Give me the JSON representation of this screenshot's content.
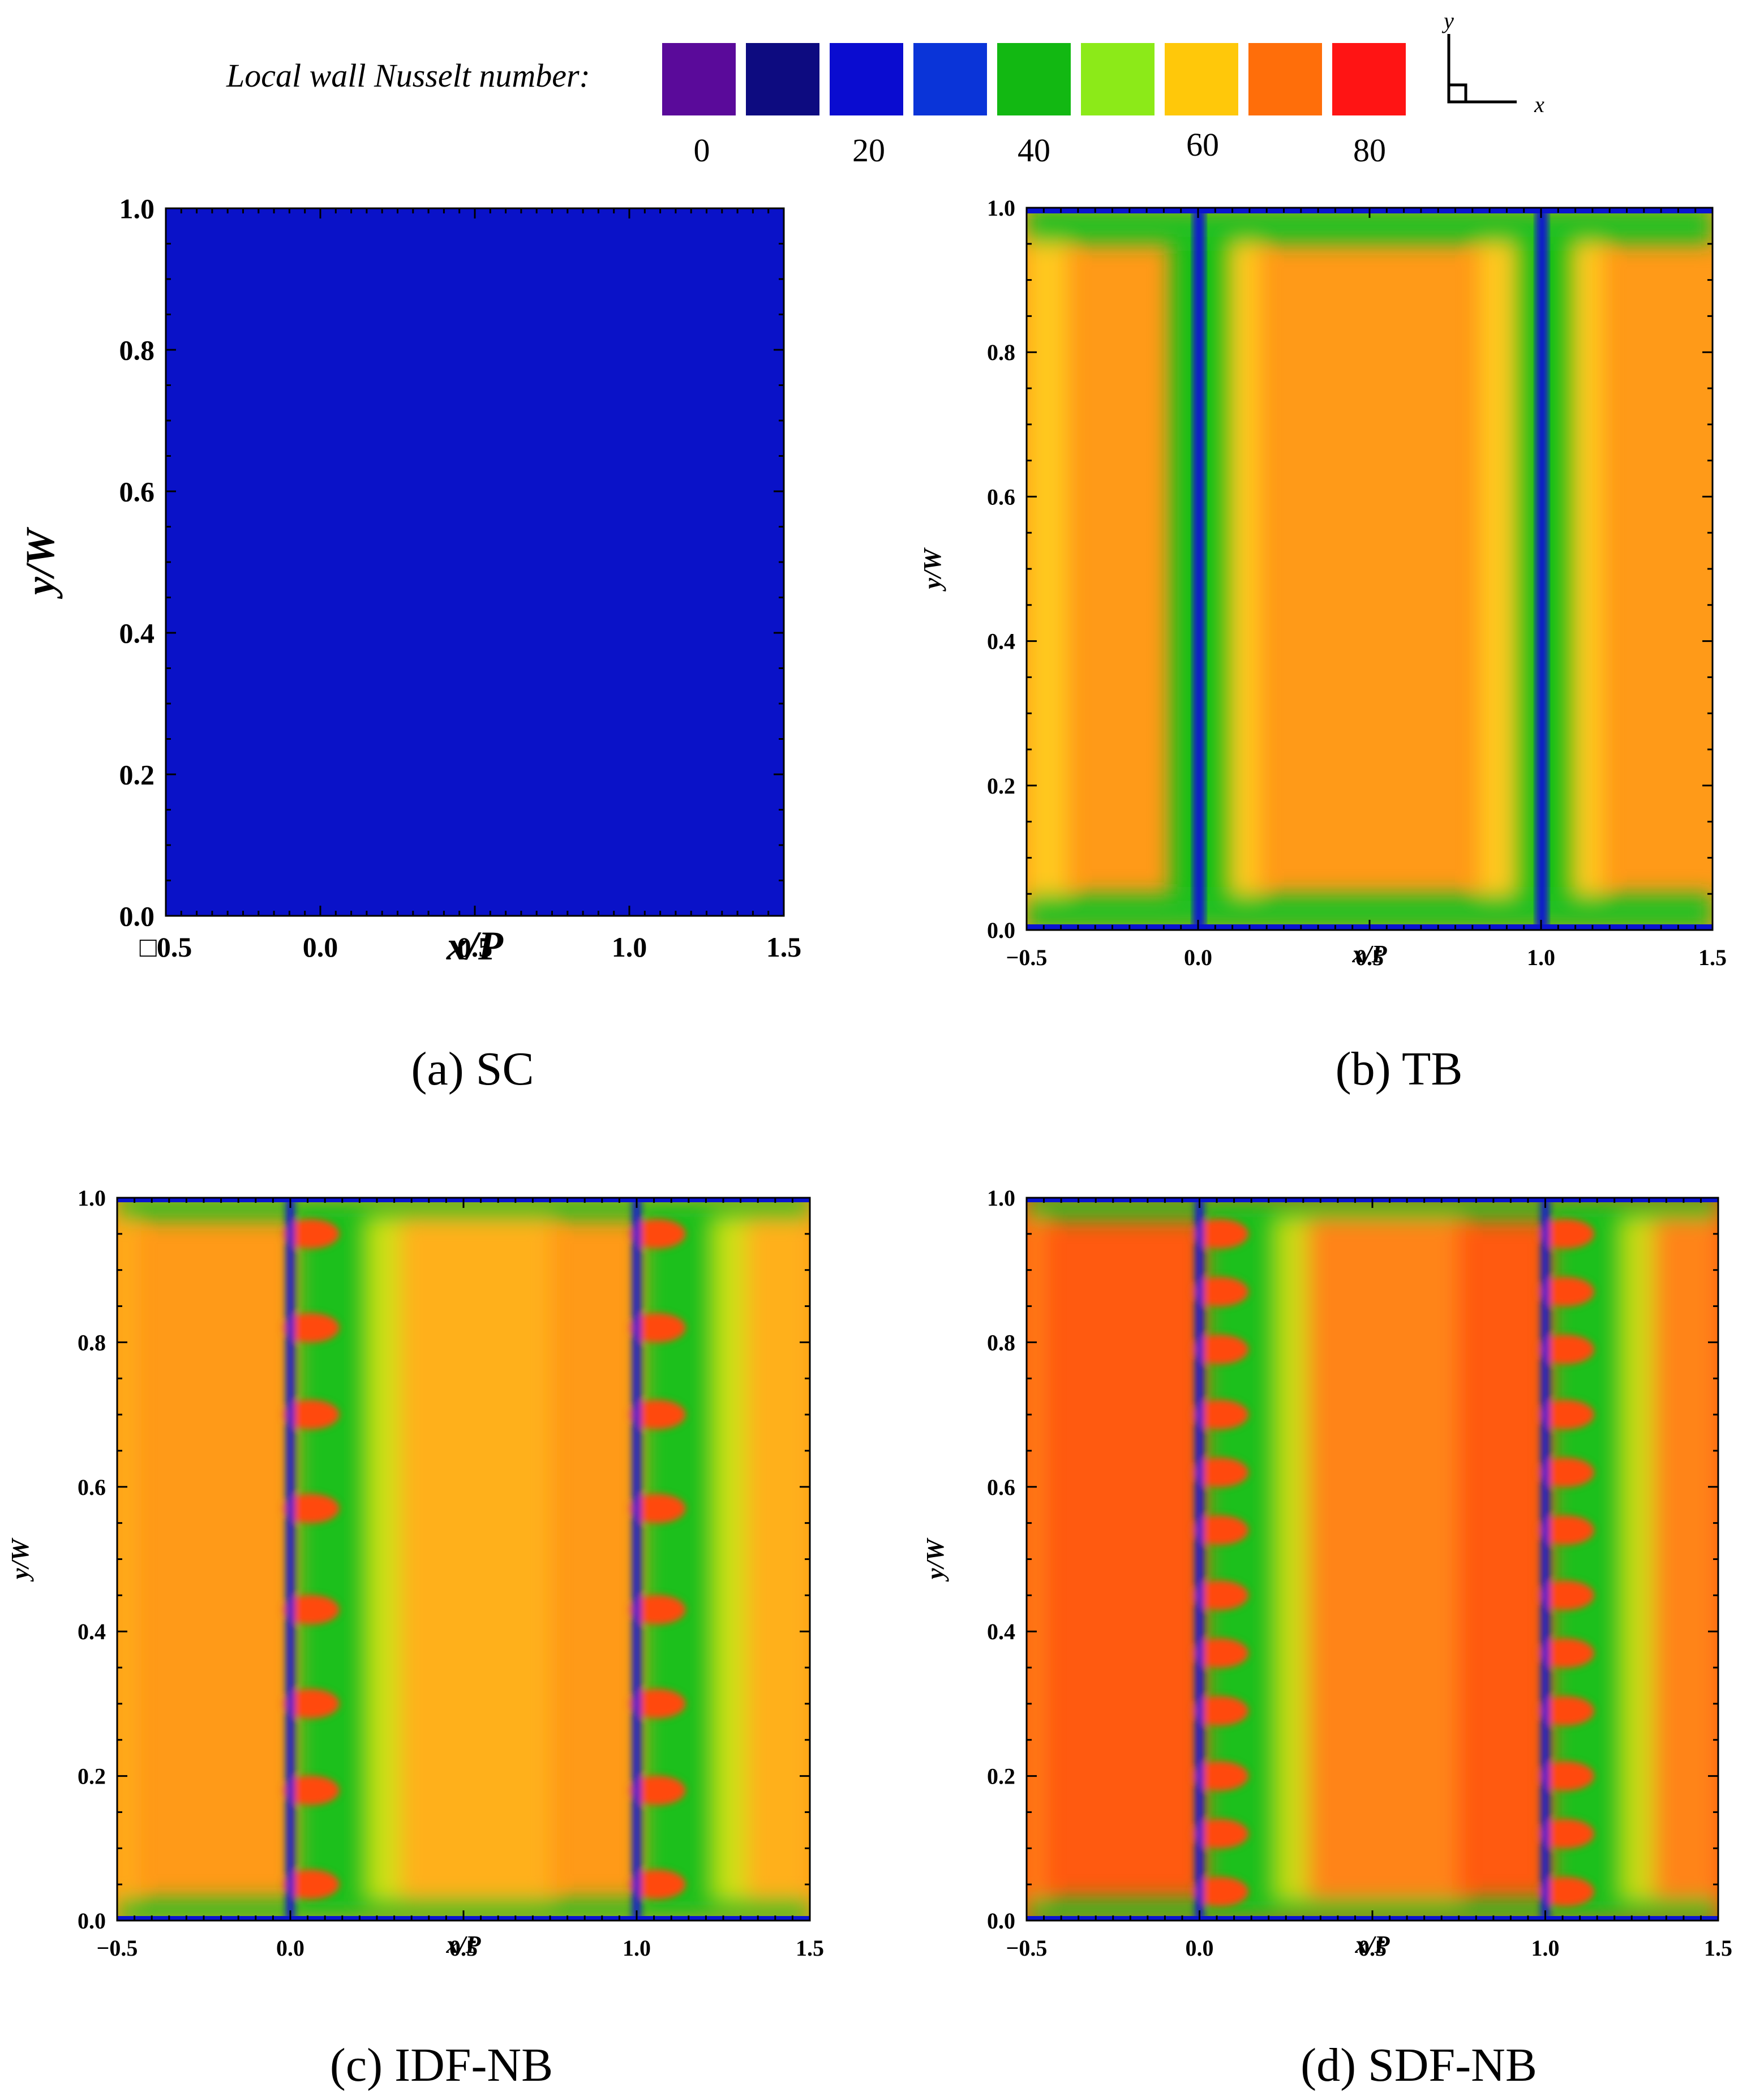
{
  "legend": {
    "title": "Local wall Nusselt number:",
    "colors": [
      "#5a0a9a",
      "#0d0b80",
      "#0a0cd0",
      "#0a34d8",
      "#12b812",
      "#8cea18",
      "#ffc80a",
      "#ff6e0a",
      "#ff1414"
    ],
    "ticks": [
      {
        "label": "0",
        "value": 0
      },
      {
        "label": "20",
        "value": 20
      },
      {
        "label": "40",
        "value": 40
      },
      {
        "label": "60",
        "value": 60
      },
      {
        "label": "80",
        "value": 80
      }
    ],
    "axes_icon": {
      "y_label": "y",
      "x_label": "x"
    }
  },
  "chart_data": [
    {
      "type": "heatmap",
      "caption": "(a) SC",
      "xlabel": "x/P",
      "ylabel": "y/W",
      "xlim": [
        -0.5,
        1.5
      ],
      "ylim": [
        0.0,
        1.0
      ],
      "xticks": [
        "□0.5",
        "0.0",
        "0.5",
        "1.0",
        "1.5"
      ],
      "yticks": [
        "0.0",
        "0.2",
        "0.4",
        "0.6",
        "0.8",
        "1.0"
      ],
      "field": "uniform",
      "nusselt_level": 20
    },
    {
      "type": "heatmap",
      "caption": "(b) TB",
      "xlabel": "x/P",
      "ylabel": "y/W",
      "xlim": [
        -0.5,
        1.5
      ],
      "ylim": [
        0.0,
        1.0
      ],
      "xticks": [
        "−0.5",
        "0.0",
        "0.5",
        "1.0",
        "1.5"
      ],
      "yticks": [
        "0.0",
        "0.2",
        "0.4",
        "0.6",
        "0.8",
        "1.0"
      ],
      "field": "transverse-baffles",
      "low_bands_x": [
        0.0,
        1.0
      ]
    },
    {
      "type": "heatmap",
      "caption": "(c) IDF-NB",
      "xlabel": "x/P",
      "ylabel": "y/W",
      "xlim": [
        -0.5,
        1.5
      ],
      "ylim": [
        0.0,
        1.0
      ],
      "xticks": [
        "−0.5",
        "0.0",
        "0.5",
        "1.0",
        "1.5"
      ],
      "yticks": [
        "0.0",
        "0.2",
        "0.4",
        "0.6",
        "0.8",
        "1.0"
      ],
      "field": "fin-array",
      "fin_rows_x": [
        0.0,
        1.0
      ],
      "fin_y": [
        0.05,
        0.18,
        0.3,
        0.43,
        0.57,
        0.7,
        0.82,
        0.95
      ]
    },
    {
      "type": "heatmap",
      "caption": "(d) SDF-NB",
      "xlabel": "x/P",
      "ylabel": "y/W",
      "xlim": [
        -0.5,
        1.5
      ],
      "ylim": [
        0.0,
        1.0
      ],
      "xticks": [
        "−0.5",
        "0.0",
        "0.5",
        "1.0",
        "1.5"
      ],
      "yticks": [
        "0.0",
        "0.2",
        "0.4",
        "0.6",
        "0.8",
        "1.0"
      ],
      "field": "fin-array-staggered",
      "fin_rows_x": [
        0.0,
        1.0
      ],
      "fin_y": [
        0.04,
        0.12,
        0.2,
        0.29,
        0.37,
        0.45,
        0.54,
        0.62,
        0.7,
        0.79,
        0.87,
        0.95
      ]
    }
  ]
}
